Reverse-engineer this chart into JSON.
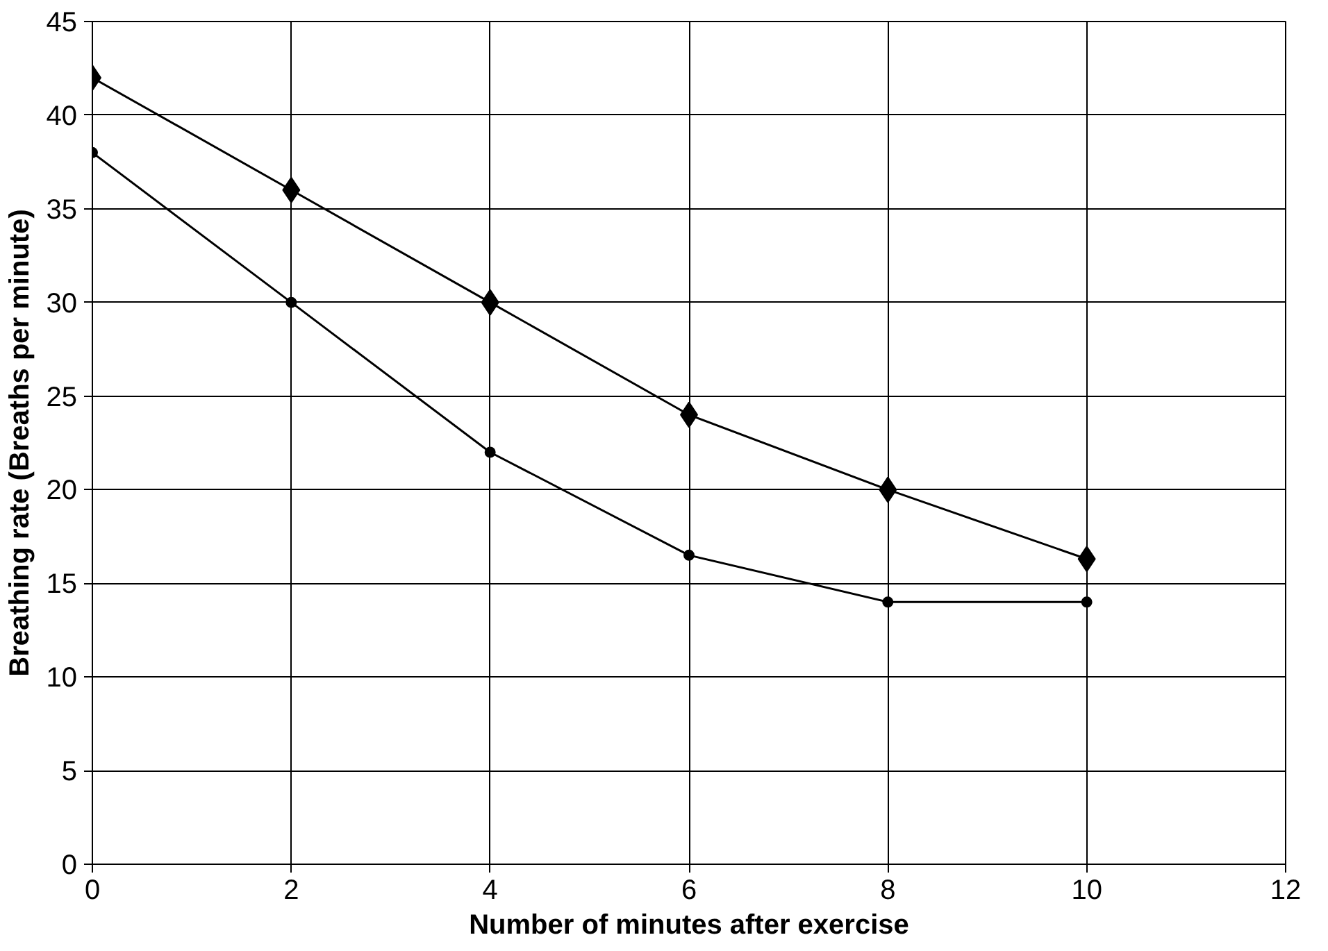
{
  "chart_data": {
    "type": "line",
    "xlabel": "Number of minutes after exercise",
    "ylabel": "Breathing rate (Breaths per minute)",
    "x": [
      0,
      2,
      4,
      6,
      8,
      10
    ],
    "series": [
      {
        "color": "#000000",
        "marker": "diamond",
        "values": [
          42,
          36,
          30,
          24,
          20,
          16.3
        ]
      },
      {
        "color": "#000000",
        "marker": "circle",
        "values": [
          38,
          30,
          22,
          16.5,
          14,
          14
        ]
      }
    ],
    "xlim": [
      0,
      12
    ],
    "xticks": [
      0,
      2,
      4,
      6,
      8,
      10,
      12
    ],
    "ylim": [
      0,
      45
    ],
    "yticks": [
      0,
      5,
      10,
      15,
      20,
      25,
      30,
      35,
      40,
      45
    ],
    "grid": true,
    "line_style": "solid"
  }
}
